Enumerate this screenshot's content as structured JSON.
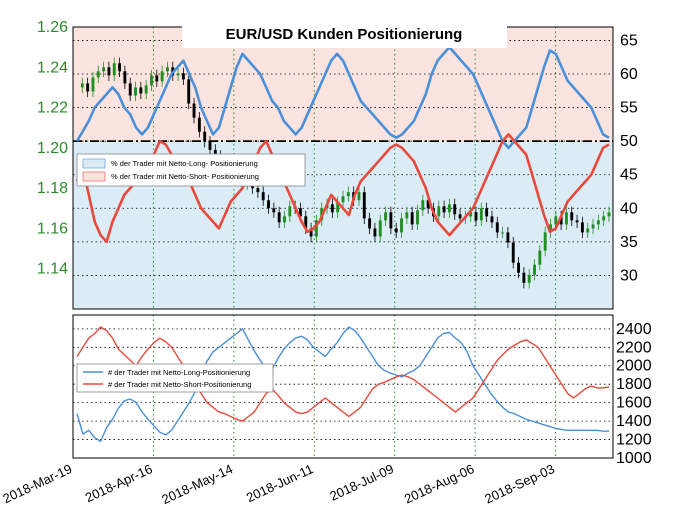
{
  "chart_data": [
    {
      "type": "candlestick",
      "title": "EUR/USD Kunden Positionierung",
      "x_tick_labels": [
        "2018-Mar-19",
        "2018-Apr-16",
        "2018-May-14",
        "2018-Jun-11",
        "2018-Jul-09",
        "2018-Aug-06",
        "2018-Sep-03"
      ],
      "x_start": "2018-03-19",
      "x_end": "2018-09-23",
      "ylim_left": [
        1.12,
        1.26
      ],
      "y_left_ticks": [
        "1.26",
        "1.24",
        "1.22",
        "1.20",
        "1.18",
        "1.16",
        "1.14"
      ],
      "ylim_right": [
        25,
        67
      ],
      "y_right_ticks": [
        "65",
        "60",
        "55",
        "50",
        "45",
        "40",
        "35",
        "30"
      ],
      "reference_line": 50,
      "candle_close": [
        1.23,
        1.232,
        1.228,
        1.235,
        1.238,
        1.24,
        1.236,
        1.242,
        1.238,
        1.232,
        1.226,
        1.23,
        1.227,
        1.231,
        1.236,
        1.233,
        1.238,
        1.24,
        1.236,
        1.237,
        1.234,
        1.222,
        1.215,
        1.208,
        1.203,
        1.199,
        1.196,
        1.194,
        1.192,
        1.188,
        1.185,
        1.182,
        1.186,
        1.18,
        1.178,
        1.174,
        1.17,
        1.168,
        1.163,
        1.166,
        1.171,
        1.17,
        1.166,
        1.16,
        1.156,
        1.164,
        1.17,
        1.172,
        1.168,
        1.173,
        1.176,
        1.178,
        1.174,
        1.178,
        1.165,
        1.16,
        1.156,
        1.164,
        1.168,
        1.16,
        1.158,
        1.165,
        1.168,
        1.162,
        1.169,
        1.174,
        1.17,
        1.166,
        1.171,
        1.168,
        1.172,
        1.167,
        1.165,
        1.166,
        1.168,
        1.164,
        1.17,
        1.166,
        1.163,
        1.158,
        1.158,
        1.153,
        1.143,
        1.138,
        1.133,
        1.137,
        1.142,
        1.149,
        1.158,
        1.162,
        1.166,
        1.162,
        1.168,
        1.164,
        1.163,
        1.158,
        1.16,
        1.162,
        1.164,
        1.166,
        1.168
      ],
      "series": [
        {
          "name": "% der Trader mit Netto-Long- Positionierung",
          "color": "#4a90d9",
          "fill": "#dcecf7",
          "values": [
            50,
            51.5,
            53,
            55,
            56,
            57,
            58,
            57,
            55,
            54,
            52,
            51,
            52,
            54,
            56,
            58,
            60,
            61,
            62,
            60,
            58,
            55,
            53,
            51,
            52,
            55,
            58,
            61,
            63,
            62,
            61,
            60,
            58,
            56,
            55,
            53,
            52,
            51,
            52,
            54,
            56,
            58,
            60,
            62,
            63,
            62,
            60,
            58,
            56,
            55,
            54,
            53,
            52,
            51,
            50.5,
            51,
            52,
            53,
            55,
            57,
            60,
            62,
            63,
            64,
            63,
            62,
            61,
            60,
            58,
            56,
            54,
            52,
            50,
            49,
            50,
            51,
            52,
            55,
            58,
            61,
            63.5,
            63,
            61,
            59,
            58,
            57,
            56,
            55,
            53,
            51,
            50.5
          ]
        },
        {
          "name": "% der Trader mit Netto-Short- Positionierung",
          "color": "#e8493b",
          "fill": "#fbe3e0",
          "values": [
            44,
            46,
            42,
            38,
            36,
            35,
            38,
            40,
            42,
            43,
            44,
            45,
            46,
            48,
            50,
            49.5,
            48,
            47,
            45,
            44,
            42,
            40,
            39,
            38,
            37,
            39,
            41,
            42,
            43,
            45,
            47,
            49,
            50,
            48,
            46,
            44,
            42,
            40,
            38,
            36.5,
            37,
            38,
            40,
            42,
            41,
            40,
            39,
            42,
            44,
            45,
            46,
            47,
            48,
            49,
            49.5,
            49,
            48,
            47,
            45,
            43,
            40,
            38,
            37,
            36,
            37,
            38,
            39,
            40,
            42,
            44,
            46,
            48,
            50,
            51,
            50,
            49,
            48,
            45,
            42,
            39,
            36.5,
            37,
            39,
            41,
            42,
            43,
            44,
            45,
            47,
            49,
            49.5
          ]
        },
        {
          "name": "# der Trader mit  Netto-Long-Positionierung",
          "color": "#4a90d9",
          "values": [
            1480,
            1260,
            1300,
            1220,
            1180,
            1330,
            1420,
            1540,
            1620,
            1640,
            1600,
            1500,
            1420,
            1350,
            1280,
            1250,
            1300,
            1400,
            1500,
            1600,
            1720,
            1900,
            2050,
            2150,
            2200,
            2250,
            2300,
            2350,
            2400,
            2280,
            2160,
            2060,
            1960,
            1960,
            2080,
            2180,
            2250,
            2300,
            2320,
            2280,
            2200,
            2150,
            2100,
            2180,
            2250,
            2350,
            2420,
            2380,
            2300,
            2200,
            2100,
            2000,
            1950,
            1920,
            1900,
            1880,
            1920,
            1950,
            2000,
            2100,
            2200,
            2300,
            2350,
            2360,
            2300,
            2250,
            2150,
            2000,
            1900,
            1800,
            1700,
            1620,
            1550,
            1500,
            1480,
            1450,
            1420,
            1400,
            1380,
            1360,
            1340,
            1320,
            1310,
            1300,
            1300,
            1300,
            1300,
            1300,
            1300,
            1290,
            1290
          ]
        },
        {
          "name": "# der Trader mit  Netto-Short-Positionierung",
          "color": "#e8493b",
          "values": [
            2100,
            2200,
            2300,
            2350,
            2420,
            2380,
            2300,
            2180,
            2120,
            2060,
            2000,
            2100,
            2180,
            2250,
            2300,
            2260,
            2200,
            2100,
            2000,
            1900,
            1820,
            1700,
            1600,
            1550,
            1500,
            1480,
            1450,
            1420,
            1400,
            1450,
            1500,
            1600,
            1700,
            1750,
            1680,
            1600,
            1550,
            1500,
            1480,
            1500,
            1550,
            1600,
            1650,
            1600,
            1550,
            1500,
            1450,
            1500,
            1550,
            1650,
            1750,
            1800,
            1820,
            1850,
            1880,
            1900,
            1880,
            1850,
            1800,
            1750,
            1700,
            1650,
            1600,
            1550,
            1500,
            1550,
            1600,
            1650,
            1750,
            1850,
            1950,
            2050,
            2120,
            2180,
            2220,
            2260,
            2280,
            2240,
            2200,
            2100,
            2000,
            1900,
            1800,
            1700,
            1650,
            1700,
            1750,
            1780,
            1760,
            1760,
            1770
          ]
        }
      ],
      "ylim_bottom": [
        1000,
        2550
      ],
      "y_bottom_ticks": [
        "2400",
        "2200",
        "2000",
        "1800",
        "1600",
        "1400",
        "1200",
        "1000"
      ],
      "grid": true,
      "legend_top": "upper-left",
      "legend_bottom": "middle-left"
    }
  ]
}
